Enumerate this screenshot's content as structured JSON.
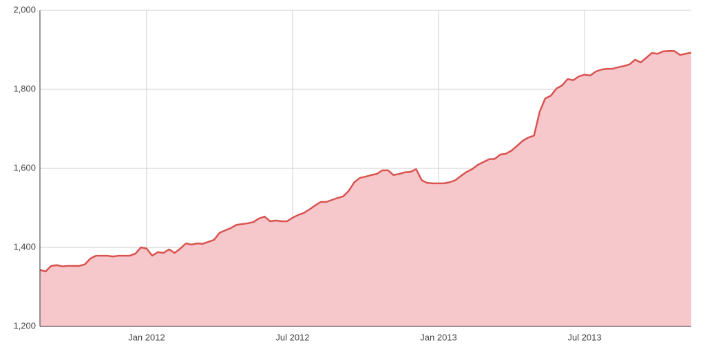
{
  "chart_data": {
    "type": "area",
    "categories": [
      null,
      null,
      null,
      null,
      null,
      null,
      null,
      null,
      null,
      null,
      null,
      null,
      null,
      null,
      null,
      null,
      null,
      null,
      null,
      "Jan 2012",
      null,
      null,
      null,
      null,
      null,
      null,
      null,
      null,
      null,
      null,
      null,
      null,
      null,
      null,
      null,
      null,
      null,
      null,
      null,
      null,
      null,
      null,
      null,
      null,
      null,
      "Jul 2012",
      null,
      null,
      null,
      null,
      null,
      null,
      null,
      null,
      null,
      null,
      null,
      null,
      null,
      null,
      null,
      null,
      null,
      null,
      null,
      null,
      null,
      null,
      null,
      null,
      null,
      "Jan 2013",
      null,
      null,
      null,
      null,
      null,
      null,
      null,
      null,
      null,
      null,
      null,
      null,
      null,
      null,
      null,
      null,
      null,
      null,
      null,
      null,
      null,
      null,
      null,
      null,
      null,
      "Jul 2013",
      null,
      null,
      null,
      null,
      null,
      null,
      null,
      null,
      null,
      null,
      null,
      null,
      null,
      null,
      null,
      null,
      null,
      null,
      null
    ],
    "values": [
      1343,
      1339,
      1353,
      1355,
      1352,
      1353,
      1353,
      1353,
      1357,
      1372,
      1379,
      1379,
      1379,
      1377,
      1379,
      1379,
      1379,
      1384,
      1400,
      1397,
      1379,
      1388,
      1386,
      1395,
      1386,
      1397,
      1410,
      1407,
      1410,
      1409,
      1414,
      1419,
      1437,
      1443,
      1449,
      1457,
      1459,
      1461,
      1464,
      1473,
      1478,
      1466,
      1468,
      1466,
      1466,
      1475,
      1482,
      1487,
      1496,
      1506,
      1515,
      1515,
      1520,
      1525,
      1529,
      1543,
      1565,
      1576,
      1579,
      1583,
      1586,
      1595,
      1595,
      1583,
      1586,
      1590,
      1591,
      1598,
      1570,
      1563,
      1562,
      1562,
      1562,
      1565,
      1570,
      1581,
      1591,
      1598,
      1609,
      1616,
      1623,
      1624,
      1635,
      1637,
      1645,
      1657,
      1670,
      1678,
      1683,
      1743,
      1777,
      1784,
      1802,
      1810,
      1826,
      1823,
      1833,
      1837,
      1835,
      1845,
      1850,
      1852,
      1852,
      1856,
      1859,
      1863,
      1875,
      1868,
      1880,
      1892,
      1890,
      1896,
      1897,
      1897,
      1887,
      1890,
      1893
    ],
    "color": "#d9534f",
    "fill_color": "#f6c7cb",
    "ylim": [
      1200,
      2000
    ],
    "yticks": [
      {
        "value": 1200,
        "label": "1,200"
      },
      {
        "value": 1400,
        "label": "1,400"
      },
      {
        "value": 1600,
        "label": "1,600"
      },
      {
        "value": 1800,
        "label": "1,800"
      },
      {
        "value": 2000,
        "label": "2,000"
      }
    ],
    "grid": true
  }
}
